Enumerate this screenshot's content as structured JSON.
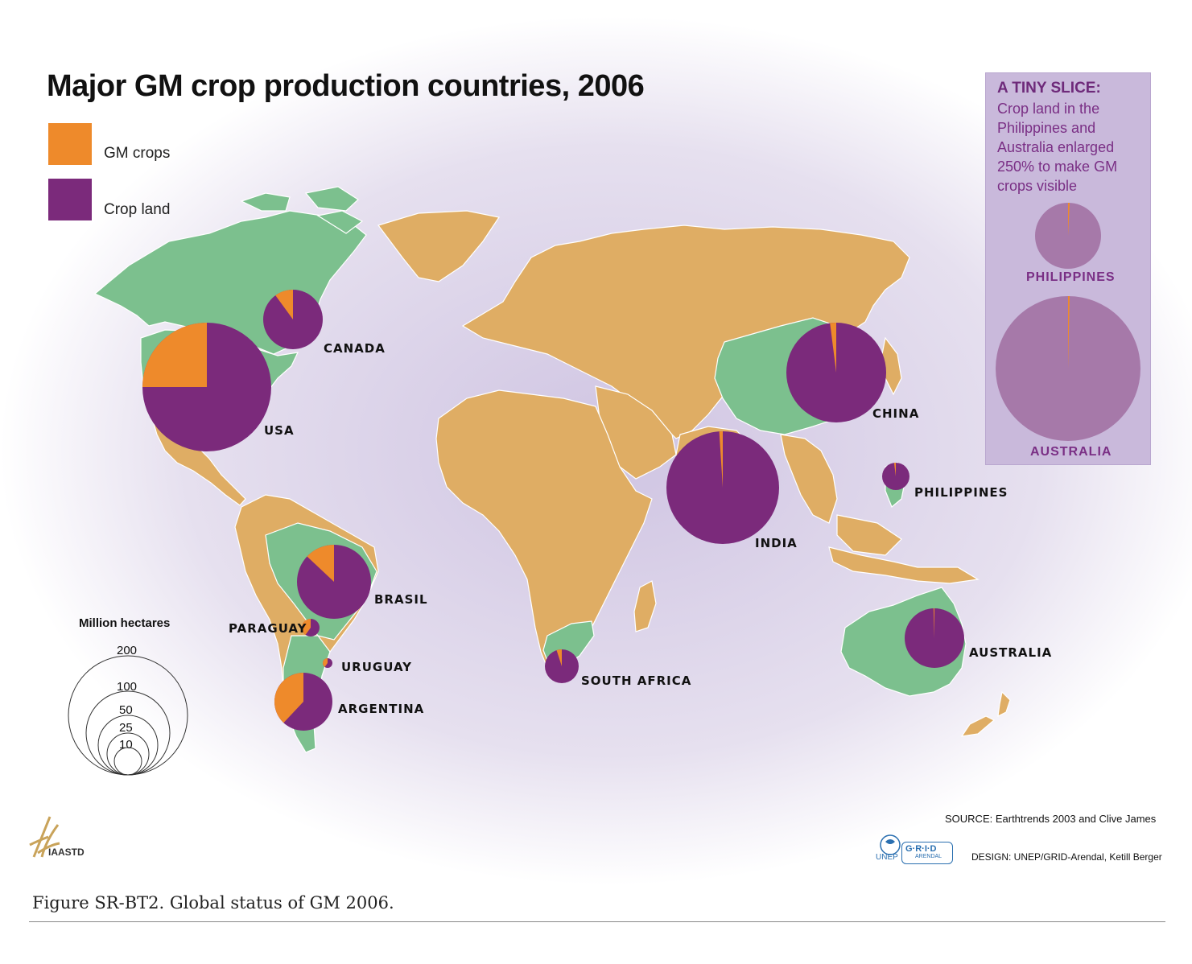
{
  "title": "Major GM crop production countries, 2006",
  "legend": [
    {
      "label": "GM crops",
      "color": "#ee8a2b"
    },
    {
      "label": "Crop land",
      "color": "#7b2a7b"
    }
  ],
  "colors": {
    "gm_country_fill": "#7cc08e",
    "other_country_fill": "#dfad64",
    "ocean_glow": "#ddd6ea",
    "inset_pie_fill": "#a679a9"
  },
  "inset": {
    "title": "A TINY SLICE:",
    "text": "Crop land in the Philippines and Australia enlarged 250% to make GM crops visible",
    "labels": [
      "PHILIPPINES",
      "AUSTRALIA"
    ]
  },
  "chart_data": {
    "type": "map_proportional_pies",
    "size_unit": "Million hectares",
    "countries": [
      {
        "name": "CANADA",
        "gm_share": 0.1
      },
      {
        "name": "USA",
        "gm_share": 0.25
      },
      {
        "name": "CHINA",
        "gm_share": 0.02
      },
      {
        "name": "INDIA",
        "gm_share": 0.01
      },
      {
        "name": "PHILIPPINES",
        "gm_share": 0.02
      },
      {
        "name": "BRASIL",
        "gm_share": 0.13
      },
      {
        "name": "PARAGUAY",
        "gm_share": 0.4
      },
      {
        "name": "URUGUAY",
        "gm_share": 0.4
      },
      {
        "name": "ARGENTINA",
        "gm_share": 0.38
      },
      {
        "name": "SOUTH AFRICA",
        "gm_share": 0.05
      },
      {
        "name": "AUSTRALIA",
        "gm_share": 0.005
      }
    ],
    "scale_legend": {
      "title": "Million hectares",
      "values": [
        200,
        100,
        50,
        25,
        10
      ]
    }
  },
  "source": "SOURCE: Earthtrends 2003 and Clive James",
  "design": "DESIGN: UNEP/GRID-Arendal, Ketill Berger",
  "caption": "Figure SR-BT2. Global status of GM 2006.",
  "logos": {
    "iaastd": "IAASTD",
    "unep": "UNEP",
    "grid": "G·R·I·D",
    "grid_sub": "ARENDAL"
  }
}
